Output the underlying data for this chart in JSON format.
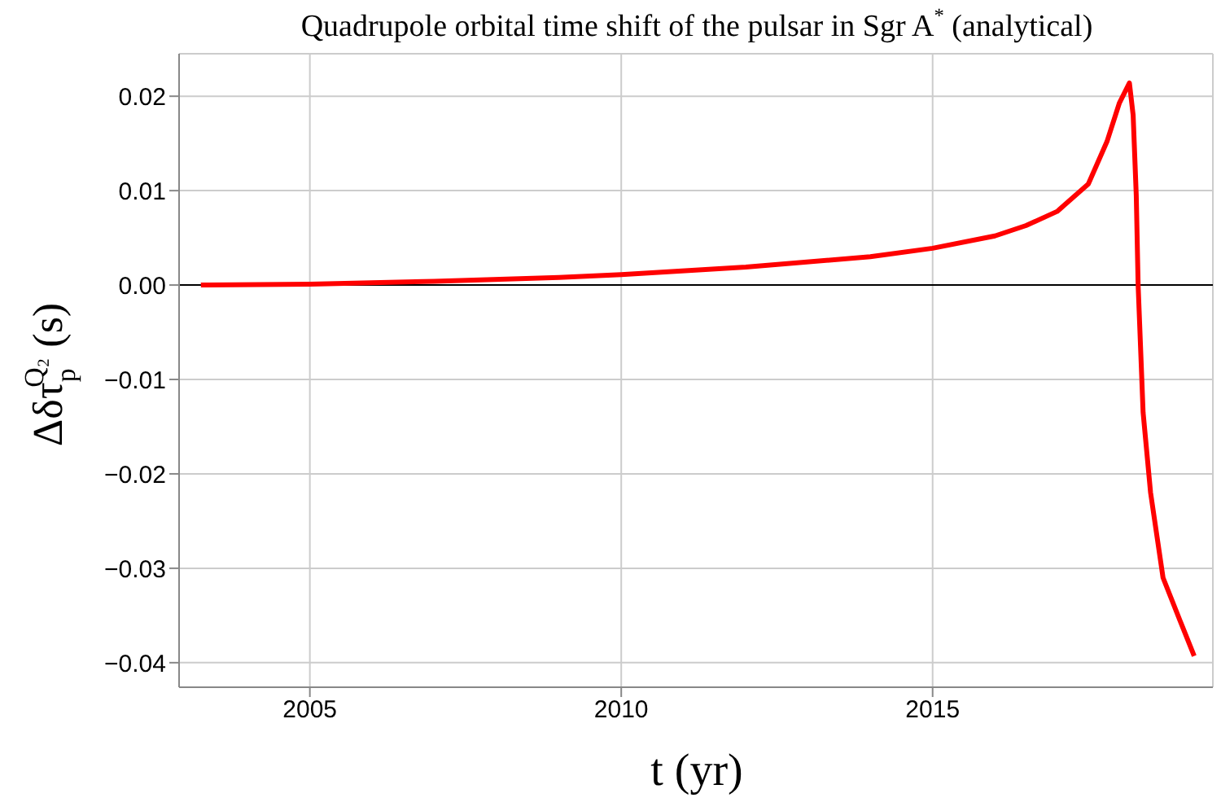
{
  "chart_data": {
    "type": "line",
    "title": "Quadrupole orbital time shift of the pulsar in Sgr A$^{*}$ (analytical)",
    "xlabel": "t (yr)",
    "ylabel": "Δδτ$_{p}$$^{Q₂}$ (s)",
    "x": [
      2003.25,
      2005,
      2007,
      2009,
      2010,
      2012,
      2014,
      2015,
      2016,
      2016.5,
      2017,
      2017.5,
      2017.8,
      2018.0,
      2018.16,
      2018.22,
      2018.27,
      2018.3,
      2018.38,
      2018.5,
      2018.7,
      2019.0,
      2019.2
    ],
    "series": [
      {
        "color": "#ff0000",
        "values": [
          0,
          0.0001,
          0.0004,
          0.0008,
          0.0011,
          0.0019,
          0.003,
          0.0039,
          0.0052,
          0.0063,
          0.0078,
          0.0107,
          0.0152,
          0.0193,
          0.0214,
          0.018,
          0.0095,
          0,
          -0.0135,
          -0.022,
          -0.031,
          -0.036,
          -0.0393
        ]
      }
    ],
    "xlim": [
      2002.9,
      2019.5
    ],
    "xticks": [
      2005,
      2010,
      2015
    ],
    "ylim": [
      -0.0426,
      0.0245
    ],
    "yticks": [
      {
        "value": -0.04,
        "label": "−0.04"
      },
      {
        "value": -0.03,
        "label": "−0.03"
      },
      {
        "value": -0.02,
        "label": "−0.02"
      },
      {
        "value": -0.01,
        "label": "−0.01"
      },
      {
        "value": 0,
        "label": "0.00"
      },
      {
        "value": 0.01,
        "label": "0.01"
      },
      {
        "value": 0.02,
        "label": "0.02"
      }
    ],
    "grid": true,
    "marker": "none",
    "line_style": "solid",
    "ref_lines": [
      {
        "axis": "y",
        "value": 0,
        "color": "#000000"
      }
    ]
  }
}
